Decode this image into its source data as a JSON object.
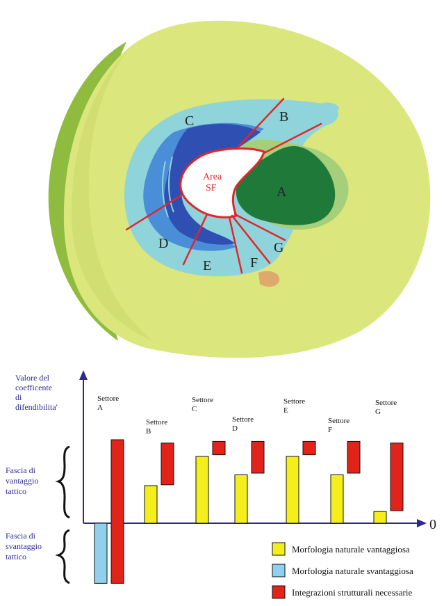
{
  "map": {
    "sectors": [
      "A",
      "B",
      "C",
      "D",
      "E",
      "F",
      "G"
    ],
    "area_label_line1": "Area",
    "area_label_line2": "SF",
    "colors": {
      "outer": "#dbe67d",
      "outer_edge": "#8fbc3f",
      "band_light": "#8fd4da",
      "band_mid": "#4a8ed8",
      "band_dark": "#2f4fb3",
      "area_a": "#1f7a3a",
      "area_a_light": "#a5cf7a",
      "area_sf_fill": "#ffffff",
      "boundary": "#e0262a"
    }
  },
  "chart": {
    "y_axis_label": [
      "Valore del",
      "coefficente",
      "di",
      "difendibilita'"
    ],
    "zero_label": "0",
    "left_labels": {
      "advantage": [
        "Fascia di",
        "vantaggio",
        "tattico"
      ],
      "disadvantage": [
        "Fascia di",
        "svantaggio",
        "tattico"
      ]
    },
    "legend": [
      {
        "label": "Morfologia naturale vantaggiosa",
        "color": "#f4ee1a"
      },
      {
        "label": "Morfologia naturale svantaggiosa",
        "color": "#8fd0ee"
      },
      {
        "label": "Integrazioni strutturali necessarie",
        "color": "#e2231a"
      }
    ]
  },
  "chart_data": {
    "type": "bar",
    "categories": [
      "Settore A",
      "Settore B",
      "Settore C",
      "Settore D",
      "Settore E",
      "Settore F",
      "Settore G"
    ],
    "sector_label_word": "Settore",
    "sector_letters": [
      "A",
      "B",
      "C",
      "D",
      "E",
      "F",
      "G"
    ],
    "morfologia_vantaggiosa": [
      0,
      0.45,
      0.8,
      0.58,
      0.8,
      0.58,
      0.14
    ],
    "morfologia_svantaggiosa": [
      -0.72,
      0,
      0,
      0,
      0,
      0,
      0
    ],
    "integrazioni_strutturali": [
      [
        -0.72,
        1.0
      ],
      [
        0.46,
        0.96
      ],
      [
        0.82,
        0.98
      ],
      [
        0.6,
        0.98
      ],
      [
        0.82,
        0.98
      ],
      [
        0.6,
        0.98
      ],
      [
        0.15,
        0.96
      ]
    ],
    "ylim": [
      -0.75,
      1.05
    ]
  }
}
